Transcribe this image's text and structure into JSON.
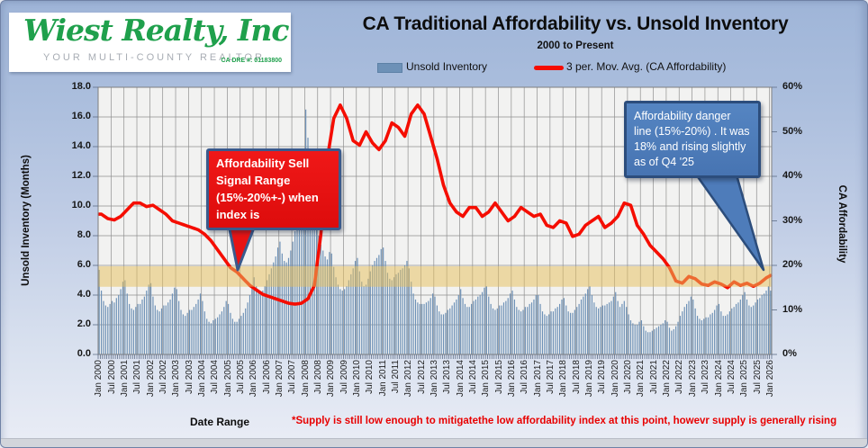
{
  "logo": {
    "name": "Wiest Realty, Inc",
    "tagline": "YOUR MULTI-COUNTY REALTOR",
    "license": "CA DRE #: 01183800"
  },
  "header": {
    "title": "CA Traditional Affordability vs. Unsold Inventory",
    "subtitle": "2000 to Present"
  },
  "legend": {
    "bar_label": "Unsold Inventory",
    "line_label": "3 per. Mov. Avg. (CA Affordability)"
  },
  "axes": {
    "left_title": "Unsold Inventory (Months)",
    "right_title": "CA Affordability",
    "x_title": "Date Range",
    "left_ticks": [
      "18.0",
      "16.0",
      "14.0",
      "12.0",
      "10.0",
      "8.0",
      "6.0",
      "4.0",
      "2.0",
      "0.0"
    ],
    "right_ticks": [
      "60%",
      "50%",
      "40%",
      "30%",
      "20%",
      "10%",
      "0%"
    ],
    "x_ticks": [
      "Jan 2000",
      "Jul 2000",
      "Jan 2001",
      "Jul 2001",
      "Jan 2002",
      "Jul 2002",
      "Jan 2003",
      "Jul 2003",
      "Jan 2004",
      "Jul 2004",
      "Jan 2005",
      "Jul 2005",
      "Jan 2006",
      "Jul 2006",
      "Jan 2007",
      "Jul 2007",
      "Jan 2008",
      "Jul 2008",
      "Jan 2009",
      "Jul 2009",
      "Jan 2010",
      "Jul 2010",
      "Jan 2011",
      "Jul 2011",
      "Jan 2012",
      "Jul 2012",
      "Jan 2013",
      "Jul 2013",
      "Jan 2014",
      "Jul 2014",
      "Jan 2015",
      "Jul 2015",
      "Jan 2016",
      "Jul 2016",
      "Jan 2017",
      "Jul 2017",
      "Jan 2018",
      "Jul 2018",
      "Jan 2019",
      "Jul 2019",
      "Jan 2020",
      "Jul 2020",
      "Jan 2021",
      "Jul 2021",
      "Jan 2022",
      "Jul 2022",
      "Jan 2023",
      "Jul 2023",
      "Jan 2024",
      "Jul 2024",
      "Jan 2025",
      "Jul 2025",
      "Jan 2026"
    ]
  },
  "annotations": {
    "sell_signal": {
      "text": "Affordability Sell Signal Range (15%-20%+-) when index is",
      "fill": "#e81313",
      "border": "#3a5a8c"
    },
    "danger": {
      "text": "Affordability danger line (15%-20%) . It was 18% and rising  slightly as of Q4 '25",
      "fill": "#4e7cba",
      "border": "#2c4d7c"
    }
  },
  "footnote": "*Supply is still low enough  to mitigatethe  low affordability index at this point,  howevr supply  is generally  rising",
  "colors": {
    "bar": "#6d91b7",
    "line": "#f50d00",
    "band": "#e7bf5e",
    "plot_bg": "#f2f2f1",
    "grid": "#8f8f8f",
    "footnote_red": "#e80000",
    "logo_green": "#1fa04c"
  },
  "chart_data": {
    "type": "bar+line combo",
    "title": "CA Traditional Affordability vs. Unsold Inventory",
    "subtitle": "2000 to Present",
    "x_range": {
      "start": "Jan 2000",
      "end": "Jan 2026",
      "frequency_bars": "monthly"
    },
    "left_axis": {
      "label": "Unsold Inventory (Months)",
      "min": 0,
      "max": 18,
      "step": 2
    },
    "right_axis": {
      "label": "CA Affordability",
      "min": 0,
      "max": 60,
      "step": 10,
      "unit": "%"
    },
    "band": {
      "meaning": "Affordability sell-signal / danger range",
      "from_pct": 15,
      "to_pct": 20
    },
    "grid": "on",
    "legend_position": "top",
    "bar_series": {
      "name": "Unsold Inventory",
      "axis": "left",
      "unit": "months of supply",
      "start": "Jan 2000",
      "values": [
        5.7,
        4.3,
        3.6,
        3.3,
        3.2,
        3.4,
        3.6,
        3.5,
        3.8,
        4.0,
        4.4,
        4.9,
        5.0,
        4.1,
        3.4,
        3.1,
        3.0,
        3.2,
        3.4,
        3.4,
        3.7,
        3.9,
        4.3,
        4.7,
        4.8,
        3.9,
        3.3,
        3.0,
        2.9,
        3.1,
        3.3,
        3.3,
        3.5,
        3.7,
        4.1,
        4.5,
        4.4,
        3.6,
        3.0,
        2.7,
        2.6,
        2.8,
        3.0,
        3.0,
        3.2,
        3.4,
        3.7,
        4.1,
        3.6,
        2.9,
        2.4,
        2.2,
        2.1,
        2.3,
        2.4,
        2.5,
        2.7,
        2.9,
        3.2,
        3.6,
        3.4,
        2.8,
        2.4,
        2.2,
        2.2,
        2.4,
        2.6,
        2.8,
        3.1,
        3.5,
        4.0,
        4.6,
        5.2,
        4.6,
        4.2,
        4.1,
        4.3,
        4.6,
        5.0,
        5.4,
        5.8,
        6.2,
        6.6,
        7.2,
        7.6,
        6.8,
        6.3,
        6.2,
        6.5,
        7.0,
        7.6,
        8.3,
        9.1,
        10.0,
        11.5,
        13.5,
        16.5,
        14.6,
        12.8,
        11.2,
        9.8,
        8.8,
        8.0,
        7.4,
        7.0,
        6.6,
        6.4,
        6.9,
        6.8,
        5.9,
        5.2,
        4.7,
        4.4,
        4.3,
        4.4,
        4.6,
        5.0,
        5.4,
        5.8,
        6.3,
        6.5,
        5.6,
        4.9,
        4.6,
        4.7,
        5.1,
        5.6,
        6.0,
        6.3,
        6.5,
        6.7,
        7.1,
        7.2,
        6.3,
        5.5,
        5.1,
        5.0,
        5.2,
        5.4,
        5.5,
        5.7,
        5.8,
        6.0,
        6.3,
        5.8,
        4.9,
        4.1,
        3.7,
        3.5,
        3.4,
        3.4,
        3.4,
        3.5,
        3.6,
        3.8,
        4.1,
        3.9,
        3.3,
        2.9,
        2.7,
        2.7,
        2.8,
        3.0,
        3.1,
        3.3,
        3.5,
        3.7,
        4.0,
        4.4,
        3.8,
        3.4,
        3.2,
        3.2,
        3.4,
        3.6,
        3.7,
        3.9,
        4.0,
        4.2,
        4.5,
        4.6,
        3.9,
        3.4,
        3.1,
        3.0,
        3.1,
        3.3,
        3.3,
        3.5,
        3.6,
        3.8,
        4.1,
        4.3,
        3.7,
        3.2,
        3.0,
        2.9,
        3.0,
        3.2,
        3.2,
        3.4,
        3.5,
        3.7,
        4.0,
        4.0,
        3.4,
        2.9,
        2.7,
        2.6,
        2.7,
        2.9,
        2.9,
        3.1,
        3.2,
        3.4,
        3.7,
        3.8,
        3.3,
        2.9,
        2.8,
        2.8,
        3.0,
        3.2,
        3.4,
        3.7,
        3.9,
        4.1,
        4.4,
        4.6,
        4.0,
        3.5,
        3.2,
        3.1,
        3.2,
        3.3,
        3.3,
        3.4,
        3.5,
        3.6,
        3.9,
        4.2,
        3.6,
        3.2,
        3.4,
        3.6,
        3.2,
        2.7,
        2.3,
        2.1,
        2.0,
        2.0,
        2.2,
        2.3,
        1.9,
        1.6,
        1.5,
        1.5,
        1.6,
        1.7,
        1.8,
        1.9,
        2.0,
        2.1,
        2.3,
        2.2,
        1.8,
        1.6,
        1.7,
        1.9,
        2.2,
        2.6,
        2.9,
        3.2,
        3.4,
        3.6,
        3.9,
        3.7,
        3.1,
        2.6,
        2.4,
        2.3,
        2.4,
        2.5,
        2.5,
        2.7,
        2.8,
        3.0,
        3.3,
        3.4,
        2.9,
        2.6,
        2.6,
        2.7,
        2.9,
        3.1,
        3.2,
        3.4,
        3.5,
        3.7,
        4.0,
        4.2,
        3.7,
        3.3,
        3.2,
        3.3,
        3.5,
        3.7,
        3.8,
        4.0,
        4.1,
        4.3,
        4.6,
        4.3
      ]
    },
    "line_series": {
      "name": "3 per. Mov. Avg. (CA Affordability)",
      "axis": "right",
      "unit": "%",
      "frequency": "quarterly",
      "start": "2000 Q1",
      "values": [
        31.5,
        30.5,
        30.2,
        31.0,
        32.5,
        34.0,
        34.0,
        33.2,
        33.5,
        32.5,
        31.5,
        30.0,
        29.5,
        29.0,
        28.5,
        28.0,
        27.0,
        25.5,
        23.5,
        21.5,
        19.5,
        18.5,
        17.0,
        15.5,
        14.5,
        13.5,
        13.0,
        12.5,
        12.0,
        11.5,
        11.3,
        11.5,
        12.5,
        15.5,
        27.0,
        44.0,
        53.0,
        56.0,
        53.0,
        48.0,
        47.0,
        50.0,
        47.5,
        46.0,
        48.0,
        52.0,
        51.0,
        49.0,
        54.0,
        56.0,
        54.0,
        49.0,
        44.0,
        38.0,
        34.0,
        32.0,
        31.0,
        33.0,
        33.0,
        31.0,
        32.0,
        34.0,
        32.0,
        30.0,
        31.0,
        33.0,
        32.0,
        31.0,
        31.5,
        29.0,
        28.5,
        30.0,
        29.5,
        26.5,
        27.0,
        29.0,
        30.0,
        31.0,
        28.5,
        29.5,
        31.0,
        34.0,
        33.5,
        29.0,
        27.0,
        24.5,
        23.0,
        21.5,
        19.5,
        16.5,
        16.0,
        17.5,
        17.0,
        15.8,
        15.5,
        16.3,
        15.8,
        15.0,
        16.3,
        15.5,
        16.0,
        15.3,
        16.0,
        17.2,
        18.0
      ]
    }
  }
}
